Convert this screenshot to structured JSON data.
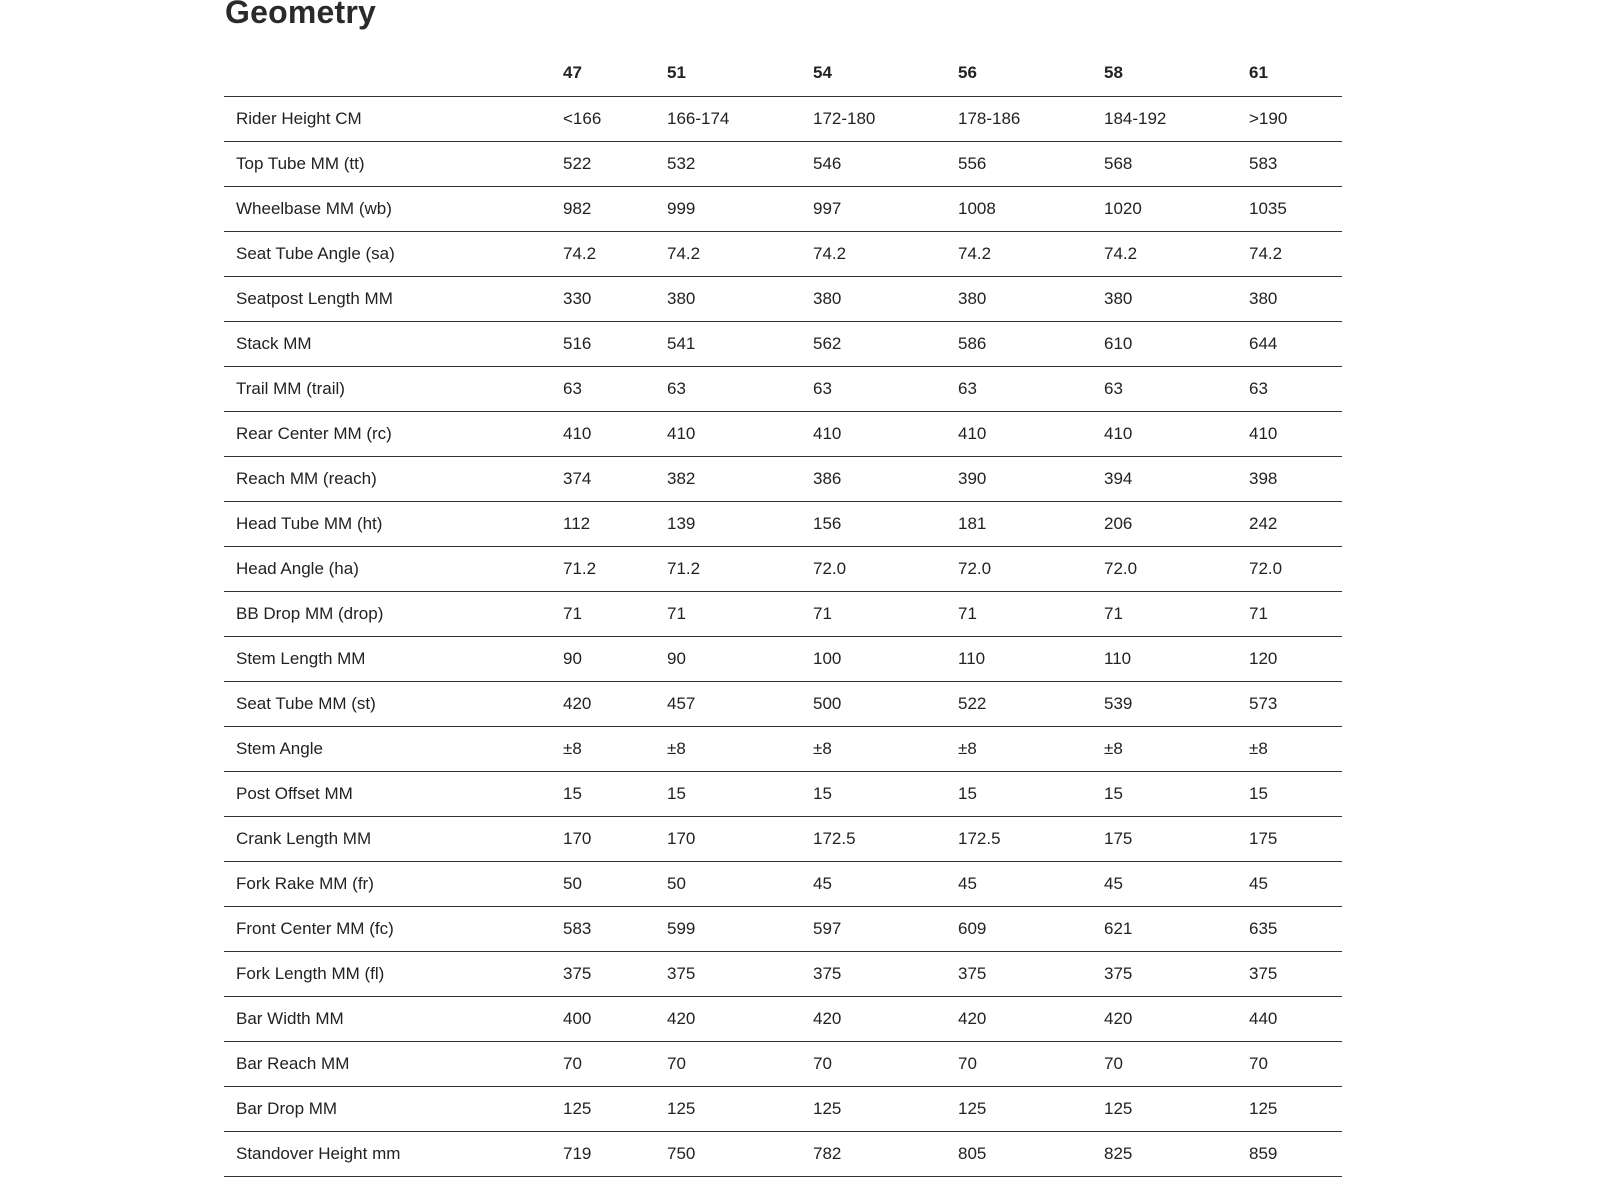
{
  "title": "Geometry",
  "table": {
    "columns": [
      "",
      "47",
      "51",
      "54",
      "56",
      "58",
      "61"
    ],
    "rows": [
      {
        "label": "Rider Height CM",
        "values": [
          "<166",
          "166-174",
          "172-180",
          "178-186",
          "184-192",
          ">190"
        ]
      },
      {
        "label": "Top Tube MM (tt)",
        "values": [
          "522",
          "532",
          "546",
          "556",
          "568",
          "583"
        ]
      },
      {
        "label": "Wheelbase MM (wb)",
        "values": [
          "982",
          "999",
          "997",
          "1008",
          "1020",
          "1035"
        ]
      },
      {
        "label": "Seat Tube Angle (sa)",
        "values": [
          "74.2",
          "74.2",
          "74.2",
          "74.2",
          "74.2",
          "74.2"
        ]
      },
      {
        "label": "Seatpost Length MM",
        "values": [
          "330",
          "380",
          "380",
          "380",
          "380",
          "380"
        ]
      },
      {
        "label": "Stack MM",
        "values": [
          "516",
          "541",
          "562",
          "586",
          "610",
          "644"
        ]
      },
      {
        "label": "Trail MM (trail)",
        "values": [
          "63",
          "63",
          "63",
          "63",
          "63",
          "63"
        ]
      },
      {
        "label": "Rear Center MM (rc)",
        "values": [
          "410",
          "410",
          "410",
          "410",
          "410",
          "410"
        ]
      },
      {
        "label": "Reach MM (reach)",
        "values": [
          "374",
          "382",
          "386",
          "390",
          "394",
          "398"
        ]
      },
      {
        "label": "Head Tube MM (ht)",
        "values": [
          "112",
          "139",
          "156",
          "181",
          "206",
          "242"
        ]
      },
      {
        "label": "Head Angle (ha)",
        "values": [
          "71.2",
          "71.2",
          "72.0",
          "72.0",
          "72.0",
          "72.0"
        ]
      },
      {
        "label": "BB Drop MM (drop)",
        "values": [
          "71",
          "71",
          "71",
          "71",
          "71",
          "71"
        ]
      },
      {
        "label": "Stem Length MM",
        "values": [
          "90",
          "90",
          "100",
          "110",
          "110",
          "120"
        ]
      },
      {
        "label": "Seat Tube MM (st)",
        "values": [
          "420",
          "457",
          "500",
          "522",
          "539",
          "573"
        ]
      },
      {
        "label": "Stem Angle",
        "values": [
          "±8",
          "±8",
          "±8",
          "±8",
          "±8",
          "±8"
        ]
      },
      {
        "label": "Post Offset MM",
        "values": [
          "15",
          "15",
          "15",
          "15",
          "15",
          "15"
        ]
      },
      {
        "label": "Crank Length MM",
        "values": [
          "170",
          "170",
          "172.5",
          "172.5",
          "175",
          "175"
        ]
      },
      {
        "label": "Fork Rake MM (fr)",
        "values": [
          "50",
          "50",
          "45",
          "45",
          "45",
          "45"
        ]
      },
      {
        "label": "Front Center MM (fc)",
        "values": [
          "583",
          "599",
          "597",
          "609",
          "621",
          "635"
        ]
      },
      {
        "label": "Fork Length MM (fl)",
        "values": [
          "375",
          "375",
          "375",
          "375",
          "375",
          "375"
        ]
      },
      {
        "label": "Bar Width MM",
        "values": [
          "400",
          "420",
          "420",
          "420",
          "420",
          "440"
        ]
      },
      {
        "label": "Bar Reach MM",
        "values": [
          "70",
          "70",
          "70",
          "70",
          "70",
          "70"
        ]
      },
      {
        "label": "Bar Drop MM",
        "values": [
          "125",
          "125",
          "125",
          "125",
          "125",
          "125"
        ]
      },
      {
        "label": "Standover Height mm",
        "values": [
          "719",
          "750",
          "782",
          "805",
          "825",
          "859"
        ]
      }
    ]
  }
}
